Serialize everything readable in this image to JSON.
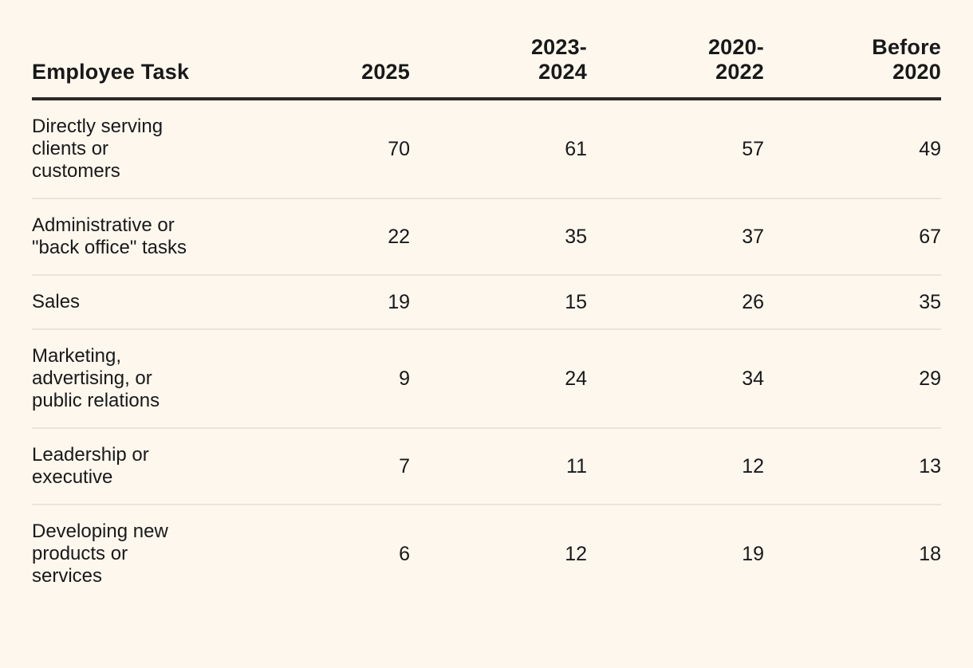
{
  "page": {
    "background_color": "#fdf7ee",
    "text_color": "#191919",
    "header_rule_color": "#2d2822",
    "row_divider_color": "#eae4da"
  },
  "table": {
    "columns": [
      "Employee Task",
      "2025",
      "2023-\n2024",
      "2020-\n2022",
      "Before\n2020"
    ],
    "rows": [
      {
        "task": "Directly serving\nclients or\ncustomers",
        "values": [
          "70",
          "61",
          "57",
          "49"
        ]
      },
      {
        "task": "Administrative or\n\"back office\" tasks",
        "values": [
          "22",
          "35",
          "37",
          "67"
        ]
      },
      {
        "task": "Sales",
        "values": [
          "19",
          "15",
          "26",
          "35"
        ]
      },
      {
        "task": "Marketing,\nadvertising, or\npublic relations",
        "values": [
          "9",
          "24",
          "34",
          "29"
        ]
      },
      {
        "task": "Leadership or\nexecutive",
        "values": [
          "7",
          "11",
          "12",
          "13"
        ]
      },
      {
        "task": "Developing new\nproducts or\nservices",
        "values": [
          "6",
          "12",
          "19",
          "18"
        ]
      }
    ]
  },
  "chart_data": {
    "type": "table",
    "columns": [
      "Employee Task",
      "2025",
      "2023-2024",
      "2020-2022",
      "Before 2020"
    ],
    "rows": [
      [
        "Directly serving clients or customers",
        70,
        61,
        57,
        49
      ],
      [
        "Administrative or \"back office\" tasks",
        22,
        35,
        37,
        67
      ],
      [
        "Sales",
        19,
        15,
        26,
        35
      ],
      [
        "Marketing, advertising, or public relations",
        9,
        24,
        34,
        29
      ],
      [
        "Leadership or executive",
        7,
        11,
        12,
        13
      ],
      [
        "Developing new products or services",
        6,
        12,
        19,
        18
      ]
    ]
  }
}
